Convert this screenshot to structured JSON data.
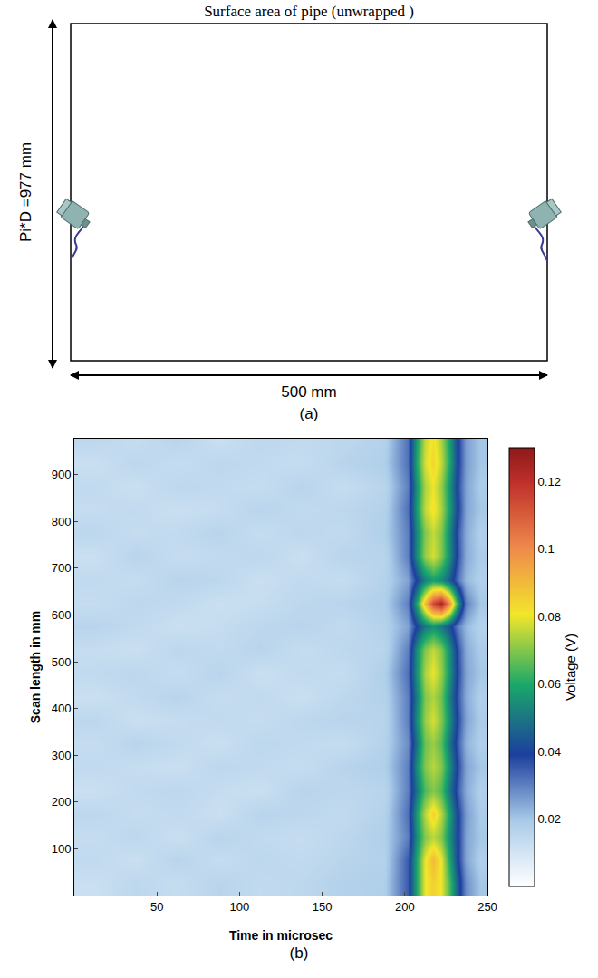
{
  "diagram": {
    "title": "Surface area of pipe (unwrapped )",
    "height_label": "Pi*D =977 mm",
    "width_label": "500 mm",
    "panel_label": "(a)"
  },
  "chart_data": {
    "type": "heatmap",
    "x_label": "Time in microsec",
    "y_label": "Scan length in mm",
    "annotations": [
      {
        "text": "(b)"
      }
    ],
    "x": [
      12.5,
      37.5,
      62.5,
      87.5,
      112.5,
      137.5,
      162.5,
      187.5,
      202,
      207,
      212,
      217,
      222,
      227,
      232,
      237,
      245.5
    ],
    "y": [
      25,
      75,
      125,
      175,
      225,
      275,
      325,
      375,
      425,
      475,
      525,
      575,
      625,
      675,
      725,
      775,
      825,
      875,
      925,
      975
    ],
    "z": [
      [
        0.012,
        0.015,
        0.013,
        0.016,
        0.014,
        0.015,
        0.017,
        0.018,
        0.035,
        0.06,
        0.08,
        0.085,
        0.08,
        0.065,
        0.045,
        0.028,
        0.02
      ],
      [
        0.014,
        0.012,
        0.016,
        0.013,
        0.015,
        0.014,
        0.016,
        0.017,
        0.035,
        0.06,
        0.08,
        0.09,
        0.08,
        0.06,
        0.04,
        0.025,
        0.018
      ],
      [
        0.013,
        0.015,
        0.012,
        0.016,
        0.014,
        0.013,
        0.015,
        0.018,
        0.03,
        0.055,
        0.07,
        0.075,
        0.07,
        0.055,
        0.04,
        0.025,
        0.02
      ],
      [
        0.015,
        0.013,
        0.014,
        0.012,
        0.016,
        0.015,
        0.014,
        0.017,
        0.032,
        0.058,
        0.075,
        0.085,
        0.075,
        0.058,
        0.04,
        0.026,
        0.019
      ],
      [
        0.012,
        0.014,
        0.015,
        0.013,
        0.012,
        0.016,
        0.015,
        0.016,
        0.03,
        0.05,
        0.065,
        0.07,
        0.065,
        0.05,
        0.035,
        0.024,
        0.018
      ],
      [
        0.014,
        0.013,
        0.012,
        0.015,
        0.014,
        0.013,
        0.016,
        0.018,
        0.03,
        0.055,
        0.07,
        0.075,
        0.07,
        0.055,
        0.038,
        0.025,
        0.02
      ],
      [
        0.013,
        0.016,
        0.014,
        0.012,
        0.015,
        0.014,
        0.013,
        0.017,
        0.028,
        0.05,
        0.068,
        0.072,
        0.066,
        0.05,
        0.035,
        0.023,
        0.018
      ],
      [
        0.015,
        0.012,
        0.013,
        0.014,
        0.013,
        0.015,
        0.016,
        0.016,
        0.03,
        0.055,
        0.072,
        0.078,
        0.07,
        0.055,
        0.038,
        0.025,
        0.019
      ],
      [
        0.012,
        0.014,
        0.016,
        0.013,
        0.014,
        0.012,
        0.015,
        0.017,
        0.03,
        0.052,
        0.07,
        0.074,
        0.068,
        0.052,
        0.036,
        0.024,
        0.018
      ],
      [
        0.014,
        0.015,
        0.013,
        0.016,
        0.012,
        0.014,
        0.013,
        0.018,
        0.032,
        0.056,
        0.074,
        0.08,
        0.072,
        0.056,
        0.038,
        0.025,
        0.02
      ],
      [
        0.013,
        0.012,
        0.015,
        0.014,
        0.016,
        0.013,
        0.015,
        0.016,
        0.03,
        0.055,
        0.07,
        0.076,
        0.07,
        0.055,
        0.037,
        0.024,
        0.019
      ],
      [
        0.016,
        0.014,
        0.012,
        0.013,
        0.015,
        0.016,
        0.014,
        0.017,
        0.025,
        0.04,
        0.05,
        0.055,
        0.05,
        0.042,
        0.03,
        0.022,
        0.017
      ],
      [
        0.013,
        0.015,
        0.014,
        0.012,
        0.013,
        0.015,
        0.016,
        0.018,
        0.03,
        0.06,
        0.09,
        0.115,
        0.125,
        0.1,
        0.06,
        0.03,
        0.02
      ],
      [
        0.014,
        0.013,
        0.016,
        0.015,
        0.012,
        0.014,
        0.013,
        0.017,
        0.025,
        0.04,
        0.052,
        0.058,
        0.054,
        0.045,
        0.032,
        0.022,
        0.018
      ],
      [
        0.012,
        0.016,
        0.013,
        0.014,
        0.015,
        0.012,
        0.016,
        0.016,
        0.03,
        0.055,
        0.072,
        0.078,
        0.07,
        0.055,
        0.037,
        0.024,
        0.019
      ],
      [
        0.015,
        0.013,
        0.014,
        0.016,
        0.013,
        0.015,
        0.014,
        0.018,
        0.03,
        0.054,
        0.07,
        0.076,
        0.07,
        0.054,
        0.036,
        0.024,
        0.018
      ],
      [
        0.013,
        0.014,
        0.012,
        0.013,
        0.016,
        0.014,
        0.015,
        0.017,
        0.032,
        0.058,
        0.076,
        0.082,
        0.074,
        0.058,
        0.04,
        0.025,
        0.02
      ],
      [
        0.014,
        0.012,
        0.015,
        0.014,
        0.013,
        0.016,
        0.013,
        0.016,
        0.03,
        0.056,
        0.074,
        0.08,
        0.072,
        0.056,
        0.038,
        0.025,
        0.019
      ],
      [
        0.012,
        0.015,
        0.013,
        0.015,
        0.014,
        0.013,
        0.016,
        0.018,
        0.032,
        0.06,
        0.078,
        0.084,
        0.076,
        0.06,
        0.04,
        0.026,
        0.02
      ],
      [
        0.015,
        0.013,
        0.016,
        0.012,
        0.015,
        0.014,
        0.015,
        0.017,
        0.032,
        0.058,
        0.076,
        0.082,
        0.074,
        0.058,
        0.04,
        0.026,
        0.02
      ]
    ],
    "xlim": [
      0,
      250
    ],
    "ylim": [
      0,
      977
    ],
    "xticks": [
      50,
      100,
      150,
      200,
      250
    ],
    "yticks": [
      100,
      200,
      300,
      400,
      500,
      600,
      700,
      800,
      900
    ],
    "colorbar": {
      "title": "Voltage (V)",
      "range": [
        0,
        0.13
      ],
      "ticks": [
        0.02,
        0.04,
        0.06,
        0.08,
        0.1,
        0.12
      ]
    }
  }
}
